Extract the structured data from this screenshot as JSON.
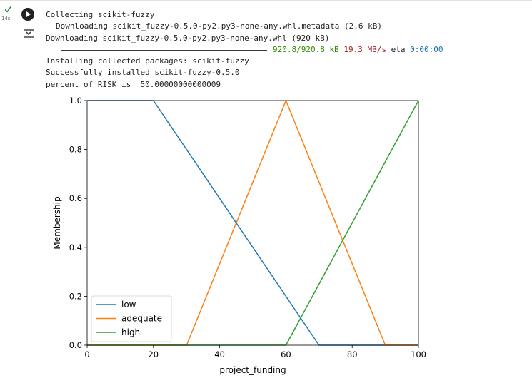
{
  "cell": {
    "status_icon": "check-icon",
    "execution_time": "14s",
    "run_icon": "play-icon",
    "output_toggle_icon": "output-toggle-icon"
  },
  "output": {
    "lines": [
      "Collecting scikit-fuzzy",
      "Downloading scikit_fuzzy-0.5.0-py2.py3-none-any.whl.metadata (2.6 kB)",
      "Downloading scikit_fuzzy-0.5.0-py2.py3-none-any.whl (920 kB)"
    ],
    "progress": {
      "amount": "920.8/920.8 kB",
      "rate": "19.3 MB/s",
      "eta_label": "eta",
      "eta": "0:00:00",
      "fraction": 1.0
    },
    "lines_after": [
      "Installing collected packages: scikit-fuzzy",
      "Successfully installed scikit-fuzzy-0.5.0",
      "percent of RISK is  50.00000000000009"
    ]
  },
  "chart_data": {
    "type": "line",
    "xlabel": "project_funding",
    "ylabel": "Membership",
    "xlim": [
      0,
      100
    ],
    "ylim": [
      0,
      1
    ],
    "xticks": [
      0,
      20,
      40,
      60,
      80,
      100
    ],
    "yticks": [
      0.0,
      0.2,
      0.4,
      0.6,
      0.8,
      1.0
    ],
    "ytick_labels": [
      "0.0",
      "0.2",
      "0.4",
      "0.6",
      "0.8",
      "1.0"
    ],
    "grid": false,
    "legend_position": "lower-left",
    "series": [
      {
        "name": "low",
        "color": "#1f77b4",
        "x": [
          0,
          20,
          70,
          100
        ],
        "y": [
          1,
          1,
          0,
          0
        ]
      },
      {
        "name": "adequate",
        "color": "#ff7f0e",
        "x": [
          0,
          30,
          60,
          90,
          100
        ],
        "y": [
          0,
          0,
          1,
          0,
          0
        ]
      },
      {
        "name": "high",
        "color": "#2ca02c",
        "x": [
          0,
          60,
          100
        ],
        "y": [
          0,
          0,
          1
        ]
      }
    ]
  }
}
